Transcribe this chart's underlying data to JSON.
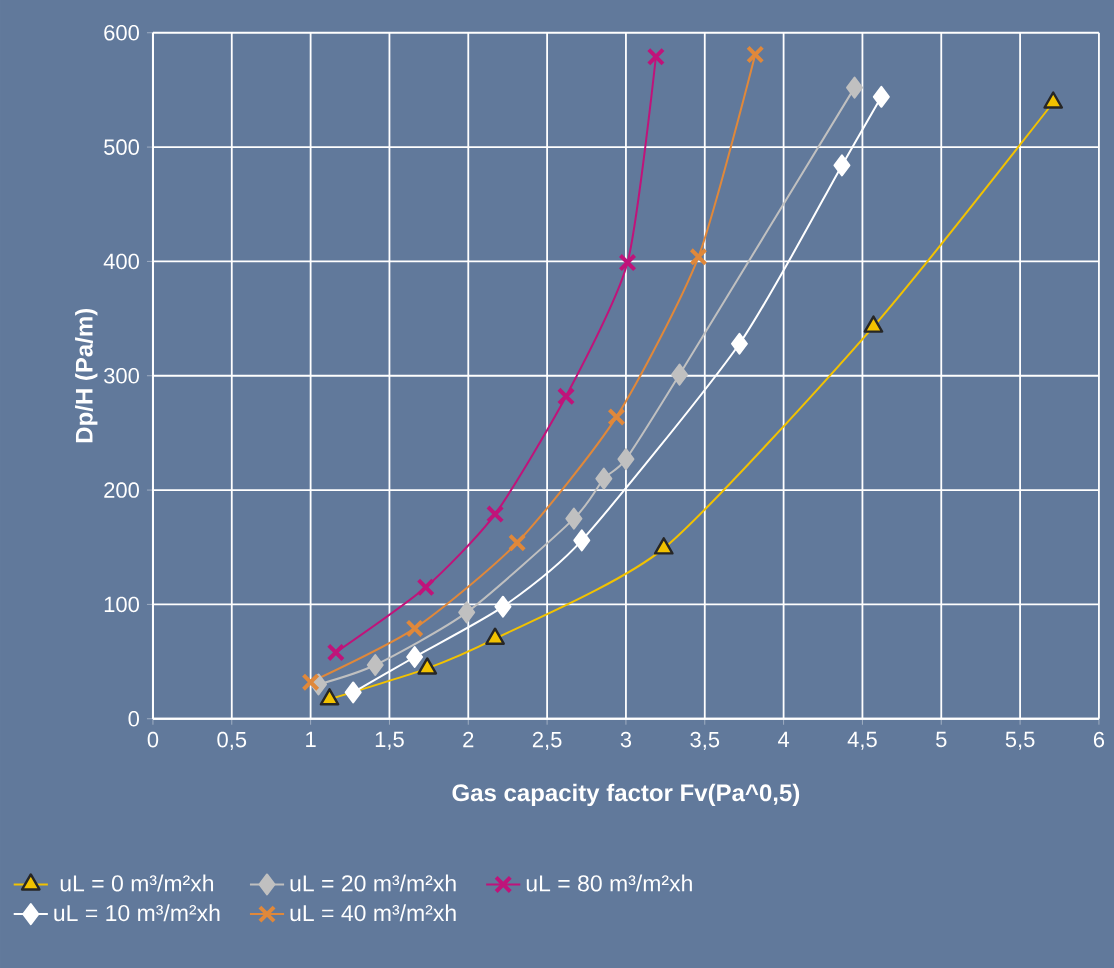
{
  "chart_data": {
    "type": "line",
    "xlabel": "Gas capacity factor Fv(Pa^0,5)",
    "ylabel": "Dp/H (Pa/m)",
    "xlim": [
      0,
      6
    ],
    "ylim": [
      0,
      600
    ],
    "xticks": [
      0,
      {
        "value": 0.5,
        "label": "0,5"
      },
      1,
      {
        "value": 1.5,
        "label": "1,5"
      },
      2,
      {
        "value": 2.5,
        "label": "2,5"
      },
      3,
      {
        "value": 3.5,
        "label": "3,5"
      },
      4,
      {
        "value": 4.5,
        "label": "4,5"
      },
      5,
      {
        "value": 5.5,
        "label": "5,5"
      },
      6
    ],
    "yticks": [
      0,
      100,
      200,
      300,
      400,
      500,
      600
    ],
    "grid": true,
    "legend": "bottom",
    "line_style": "solid",
    "series": [
      {
        "name": "uL = 0 m³/m²xh",
        "color": "#f2c200",
        "marker": "triangle",
        "x": [
          1.12,
          1.74,
          2.17,
          3.24,
          4.57,
          5.71
        ],
        "values": [
          17,
          44,
          70,
          149,
          343,
          539
        ]
      },
      {
        "name": "uL = 20 m³/m²xh",
        "color": "#c0c0c0",
        "marker": "diamond",
        "x": [
          1.05,
          1.41,
          1.99,
          2.67,
          2.86,
          3.0,
          3.34,
          4.45
        ],
        "values": [
          30,
          47,
          93,
          175,
          210,
          227,
          301,
          552
        ]
      },
      {
        "name": "uL = 80 m³/m²xh",
        "color": "#c0137a",
        "marker": "cross",
        "x": [
          1.16,
          1.73,
          2.17,
          2.62,
          3.01,
          3.19
        ],
        "values": [
          58,
          115,
          179,
          282,
          399,
          579
        ]
      },
      {
        "name": "uL = 10 m³/m²xh",
        "color": "#ffffff",
        "marker": "diamond",
        "x": [
          1.27,
          1.66,
          2.22,
          2.72,
          3.72,
          4.37,
          4.62
        ],
        "values": [
          23,
          54,
          98,
          156,
          328,
          484,
          544
        ]
      },
      {
        "name": "uL = 40 m³/m²xh",
        "color": "#e0883a",
        "marker": "cross",
        "x": [
          1.0,
          1.66,
          2.31,
          2.94,
          3.46,
          3.82
        ],
        "values": [
          32,
          79,
          154,
          264,
          404,
          581
        ]
      }
    ]
  }
}
